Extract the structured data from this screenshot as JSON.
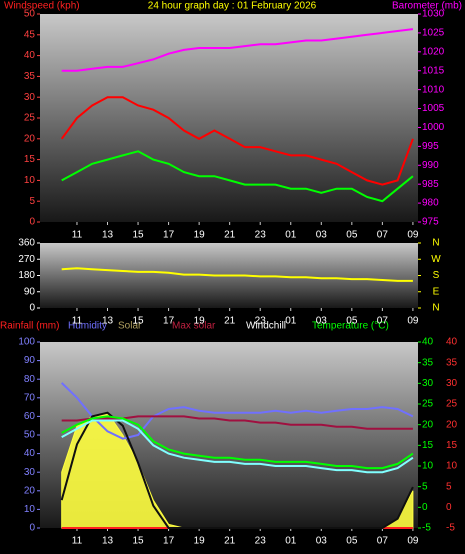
{
  "chart_data": [
    {
      "type": "line",
      "title": "24 hour graph day : 01 February 2026",
      "ylabel": "Windspeed (kph)",
      "y2label": "Barometer (mb)",
      "categories": [
        null,
        "11",
        null,
        "13",
        null,
        "15",
        null,
        "17",
        null,
        "19",
        null,
        "21",
        null,
        "23",
        null,
        "01",
        null,
        "03",
        null,
        "05",
        null,
        "07",
        null,
        "09"
      ],
      "ylim": [
        0,
        50
      ],
      "yticks": [
        0,
        5,
        10,
        15,
        20,
        25,
        30,
        35,
        40,
        45,
        50
      ],
      "y2lim": [
        975,
        1030
      ],
      "y2ticks": [
        975,
        980,
        985,
        990,
        995,
        1000,
        1005,
        1010,
        1015,
        1020,
        1025,
        1030
      ],
      "series": [
        {
          "color": "#ff0000",
          "values": [
            20,
            25,
            28,
            30,
            30,
            28,
            27,
            25,
            22,
            20,
            22,
            20,
            18,
            18,
            17,
            16,
            16,
            15,
            14,
            12,
            10,
            9,
            10,
            20
          ]
        },
        {
          "color": "#00ff00",
          "values": [
            10,
            12,
            14,
            15,
            16,
            17,
            15,
            14,
            12,
            11,
            11,
            10,
            9,
            9,
            9,
            8,
            8,
            7,
            8,
            8,
            6,
            5,
            8,
            11
          ]
        },
        {
          "color": "#ff00ff",
          "axis": "y2",
          "values": [
            1015,
            1015,
            1015.5,
            1016,
            1016,
            1017,
            1018,
            1019.5,
            1020.5,
            1021,
            1021,
            1021,
            1021.5,
            1022,
            1022,
            1022.5,
            1023,
            1023,
            1023.5,
            1024,
            1024.5,
            1025,
            1025.5,
            1026
          ]
        }
      ]
    },
    {
      "type": "line",
      "categories": [
        null,
        "11",
        null,
        "13",
        null,
        "15",
        null,
        "17",
        null,
        "19",
        null,
        "21",
        null,
        "23",
        null,
        "01",
        null,
        "03",
        null,
        "05",
        null,
        "07",
        null,
        "09"
      ],
      "ylim": [
        0,
        360
      ],
      "yticks": [
        0,
        90,
        180,
        270,
        360
      ],
      "y2lim": [
        0,
        360
      ],
      "y2ticks": [
        {
          "value": 0,
          "label": "N"
        },
        {
          "value": 90,
          "label": "E"
        },
        {
          "value": 180,
          "label": "S"
        },
        {
          "value": 270,
          "label": "W"
        },
        {
          "value": 360,
          "label": "N"
        }
      ],
      "series": [
        {
          "color": "#ffff00",
          "values": [
            215,
            220,
            215,
            210,
            205,
            200,
            200,
            195,
            185,
            185,
            180,
            180,
            180,
            175,
            175,
            170,
            170,
            165,
            165,
            160,
            160,
            155,
            150,
            150
          ]
        }
      ]
    },
    {
      "type": "line",
      "categories": [
        null,
        "11",
        null,
        "13",
        null,
        "15",
        null,
        "17",
        null,
        "19",
        null,
        "21",
        null,
        "23",
        null,
        "01",
        null,
        "03",
        null,
        "05",
        null,
        "07",
        null,
        "09"
      ],
      "ylim": [
        0,
        100
      ],
      "yticks": [
        0,
        10,
        20,
        30,
        40,
        50,
        60,
        70,
        80,
        90,
        100
      ],
      "y2lim": [
        -5,
        40
      ],
      "y2ticks": [
        -5,
        0,
        5,
        10,
        15,
        20,
        25,
        30,
        35,
        40
      ],
      "series": [
        {
          "name": "Solar",
          "color": "#ffff40",
          "fill": true,
          "values": [
            30,
            55,
            60,
            62,
            50,
            35,
            15,
            2,
            0,
            0,
            0,
            0,
            0,
            0,
            0,
            0,
            0,
            0,
            0,
            0,
            0,
            0,
            5,
            20
          ]
        },
        {
          "name": "Rainfall (mm)",
          "color": "#ff2020",
          "values": [
            0,
            0,
            0,
            0,
            0,
            0,
            0,
            0,
            0,
            0,
            0,
            0,
            0,
            0,
            0,
            0,
            0,
            0,
            0,
            0,
            0,
            0,
            0,
            0
          ]
        },
        {
          "name": "Humidity",
          "color": "#7070ff",
          "values": [
            78,
            70,
            60,
            52,
            48,
            50,
            60,
            64,
            65,
            63,
            62,
            62,
            62,
            62,
            63,
            62,
            63,
            62,
            63,
            64,
            64,
            65,
            64,
            60
          ]
        },
        {
          "name": "Max solar",
          "color": "#101010",
          "values": [
            15,
            45,
            60,
            62,
            55,
            35,
            12,
            0,
            0,
            0,
            0,
            0,
            0,
            0,
            0,
            0,
            0,
            0,
            0,
            0,
            0,
            0,
            5,
            22
          ]
        },
        {
          "color": "#a01040",
          "axis": "y2",
          "values": [
            21,
            21,
            21.5,
            21.5,
            21.5,
            22,
            22,
            22,
            22,
            21.5,
            21.5,
            21,
            21,
            20.5,
            20.5,
            20,
            20,
            20,
            19.5,
            19.5,
            19,
            19,
            19,
            19
          ]
        },
        {
          "name": "Windchill",
          "color": "#80ffff",
          "axis": "y2",
          "values": [
            17,
            19,
            21,
            21,
            21,
            19,
            15,
            13,
            12,
            11.5,
            11,
            11,
            10.5,
            10.5,
            10,
            10,
            10,
            9.5,
            9,
            9,
            8.5,
            8.5,
            9.5,
            12
          ]
        },
        {
          "name": "Temperature (°C)",
          "color": "#00ff00",
          "axis": "y2",
          "values": [
            18,
            20,
            21.5,
            22,
            21.5,
            20,
            16,
            14,
            13,
            12.5,
            12,
            12,
            11.5,
            11.5,
            11,
            11,
            11,
            10.5,
            10,
            10,
            9.5,
            9.5,
            10.5,
            13
          ]
        }
      ]
    }
  ]
}
